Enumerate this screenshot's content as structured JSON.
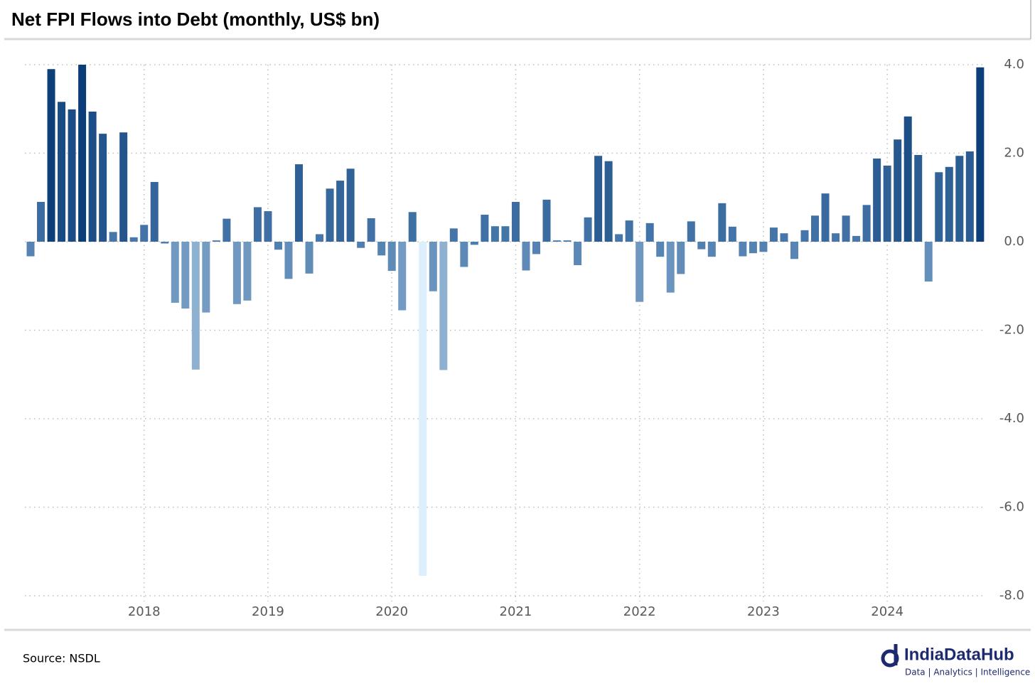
{
  "chart_data": {
    "type": "bar",
    "title": "Net FPI Flows into Debt (monthly, US$ bn)",
    "source": "Source: NSDL",
    "brand": "IndiaDataHub",
    "brand_tagline": "Data | Analytics | Intelligence",
    "categories": [
      null,
      null,
      null,
      null,
      null,
      null,
      null,
      null,
      null,
      null,
      null,
      "2018",
      null,
      null,
      null,
      null,
      null,
      null,
      null,
      null,
      null,
      null,
      null,
      "2019",
      null,
      null,
      null,
      null,
      null,
      null,
      null,
      null,
      null,
      null,
      null,
      "2020",
      null,
      null,
      null,
      null,
      null,
      null,
      null,
      null,
      null,
      null,
      null,
      "2021",
      null,
      null,
      null,
      null,
      null,
      null,
      null,
      null,
      null,
      null,
      null,
      "2022",
      null,
      null,
      null,
      null,
      null,
      null,
      null,
      null,
      null,
      null,
      null,
      "2023",
      null,
      null,
      null,
      null,
      null,
      null,
      null,
      null,
      null,
      null,
      null,
      "2024",
      null,
      null,
      null,
      null,
      null,
      null,
      null,
      null,
      null
    ],
    "values": [
      -0.33,
      0.9,
      3.9,
      3.16,
      2.99,
      4.0,
      2.94,
      2.44,
      0.22,
      2.47,
      0.1,
      0.38,
      1.35,
      -0.04,
      -1.38,
      -1.51,
      -2.89,
      -1.6,
      0.03,
      0.52,
      -1.41,
      -1.33,
      0.78,
      0.69,
      -0.18,
      -0.84,
      1.75,
      -0.72,
      0.17,
      1.2,
      1.38,
      1.65,
      -0.14,
      0.53,
      -0.31,
      -0.66,
      -1.55,
      0.67,
      -7.55,
      -1.12,
      -2.9,
      0.3,
      -0.57,
      -0.07,
      0.61,
      0.35,
      0.35,
      0.9,
      -0.65,
      -0.28,
      0.95,
      0.03,
      0.03,
      -0.53,
      0.55,
      1.94,
      1.82,
      0.17,
      0.48,
      -1.36,
      0.42,
      -0.34,
      -1.15,
      -0.73,
      0.46,
      -0.17,
      -0.34,
      0.87,
      0.34,
      -0.33,
      -0.26,
      -0.23,
      0.32,
      0.19,
      -0.39,
      0.26,
      0.59,
      1.09,
      0.19,
      0.59,
      0.13,
      0.83,
      1.88,
      1.72,
      2.31,
      2.83,
      1.96,
      -0.9,
      1.57,
      1.69,
      1.94,
      2.04,
      3.94
    ],
    "color_scale": {
      "low": "#ddeefc",
      "mid": "#4a7aac",
      "high": "#0b3d78"
    },
    "ylim": [
      -8,
      4
    ],
    "yticks": [
      {
        "value": -8,
        "label": "-8.0"
      },
      {
        "value": -6,
        "label": "-6.0"
      },
      {
        "value": -4,
        "label": "-4.0"
      },
      {
        "value": -2,
        "label": "-2.0"
      },
      {
        "value": 0,
        "label": "0.0"
      },
      {
        "value": 2,
        "label": "2.0"
      },
      {
        "value": 4,
        "label": "4.0"
      }
    ],
    "grid": true
  }
}
